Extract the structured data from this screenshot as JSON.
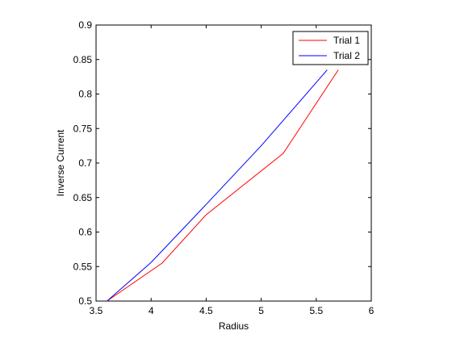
{
  "chart_data": {
    "type": "line",
    "title": "",
    "xlabel": "Radius",
    "ylabel": "Inverse Current",
    "xlim": [
      3.5,
      6
    ],
    "ylim": [
      0.5,
      0.9
    ],
    "xticks": [
      "3.5",
      "4",
      "4.5",
      "5",
      "5.5",
      "6"
    ],
    "yticks": [
      "0.5",
      "0.55",
      "0.6",
      "0.65",
      "0.7",
      "0.75",
      "0.8",
      "0.85",
      "0.9"
    ],
    "grid": false,
    "legend_position": "top-right",
    "series": [
      {
        "name": "Trial 1",
        "color": "#ff0000",
        "x": [
          3.6,
          4.1,
          4.5,
          5.2,
          5.7
        ],
        "y": [
          0.5,
          0.555,
          0.625,
          0.714,
          0.835
        ]
      },
      {
        "name": "Trial 2",
        "color": "#0000ff",
        "x": [
          3.6,
          4.0,
          4.5,
          5.0,
          5.6
        ],
        "y": [
          0.5,
          0.556,
          0.64,
          0.725,
          0.835
        ]
      }
    ]
  }
}
